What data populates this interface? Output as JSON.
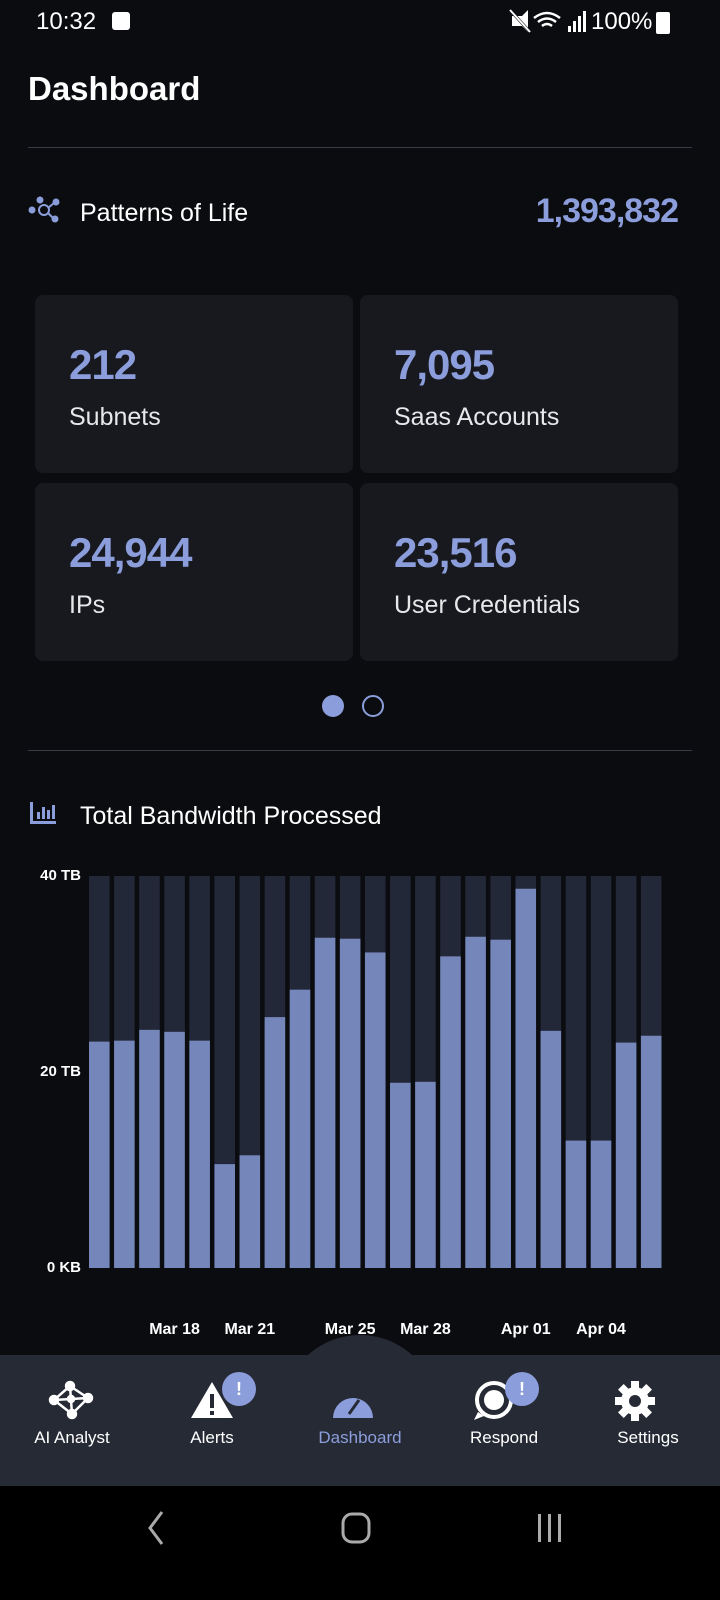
{
  "status_bar": {
    "time": "10:32",
    "battery": "100%"
  },
  "header": {
    "title": "Dashboard"
  },
  "patterns": {
    "title": "Patterns of Life",
    "total": "1,393,832",
    "cards": [
      {
        "value": "212",
        "label": "Subnets"
      },
      {
        "value": "7,095",
        "label": "Saas Accounts"
      },
      {
        "value": "24,944",
        "label": "IPs"
      },
      {
        "value": "23,516",
        "label": "User Credentials"
      }
    ]
  },
  "bandwidth": {
    "title": "Total Bandwidth Processed"
  },
  "chart_data": {
    "type": "bar",
    "color": "#7586bb",
    "track_color": "#232838",
    "categories": [
      null,
      null,
      null,
      "Mar 18",
      null,
      null,
      "Mar 21",
      null,
      null,
      null,
      "Mar 25",
      null,
      null,
      "Mar 28",
      null,
      null,
      null,
      "Apr 01",
      null,
      null,
      "Apr 04",
      null,
      null
    ],
    "values": [
      23.1,
      23.2,
      24.3,
      24.1,
      23.2,
      10.6,
      11.5,
      25.6,
      28.4,
      33.7,
      33.6,
      32.2,
      18.9,
      19.0,
      31.8,
      33.8,
      33.5,
      38.7,
      24.2,
      13.0,
      13.0,
      23.0,
      23.7
    ],
    "ylim": [
      0,
      40
    ],
    "yticks": [
      {
        "value": 0,
        "label": "0 KB"
      },
      {
        "value": 20,
        "label": "20 TB"
      },
      {
        "value": 40,
        "label": "40 TB"
      }
    ]
  },
  "nav": {
    "items": [
      {
        "label": "AI Analyst"
      },
      {
        "label": "Alerts",
        "badge": "!"
      },
      {
        "label": "Dashboard"
      },
      {
        "label": "Respond",
        "badge": "!"
      },
      {
        "label": "Settings"
      }
    ]
  }
}
